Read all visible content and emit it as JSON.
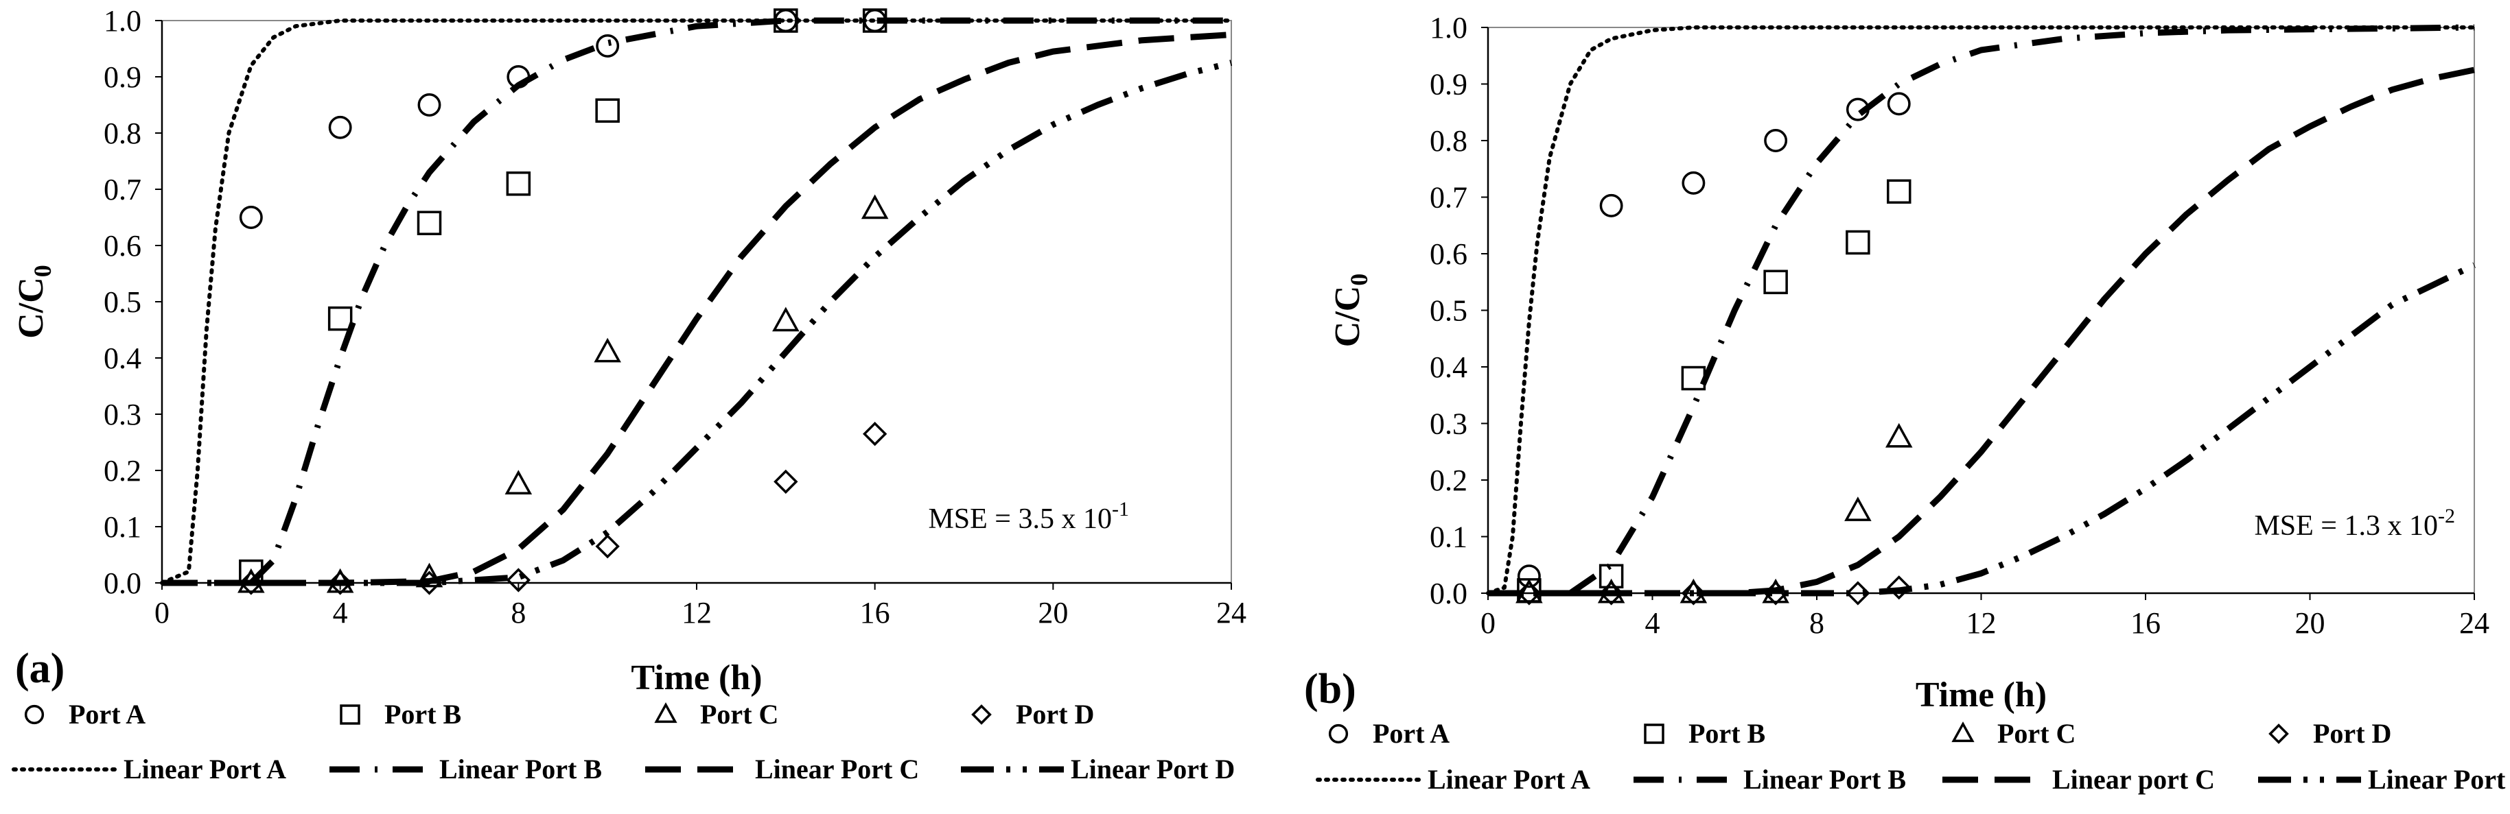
{
  "chart_data": [
    {
      "type": "scatter",
      "panel_label": "(a)",
      "xlabel": "Time (h)",
      "ylabel": "C/C",
      "ylabel_sub": "0",
      "xlim": [
        0,
        24
      ],
      "ylim": [
        0,
        1
      ],
      "xticks": [
        "0",
        "4",
        "8",
        "12",
        "16",
        "20",
        "24"
      ],
      "yticks": [
        "0.0",
        "0.1",
        "0.2",
        "0.3",
        "0.4",
        "0.5",
        "0.6",
        "0.7",
        "0.8",
        "0.9",
        "1.0"
      ],
      "annotation": {
        "text": "MSE = 3.5 x 10",
        "sup": "-1"
      },
      "series": [
        {
          "name": "Port A",
          "marker": "circle",
          "points": [
            [
              2,
              0.65
            ],
            [
              4,
              0.81
            ],
            [
              6,
              0.85
            ],
            [
              8,
              0.9
            ],
            [
              10,
              0.955
            ],
            [
              14,
              1.0
            ],
            [
              16,
              1.0
            ]
          ]
        },
        {
          "name": "Port B",
          "marker": "square",
          "points": [
            [
              2,
              0.02
            ],
            [
              4,
              0.47
            ],
            [
              6,
              0.64
            ],
            [
              8,
              0.71
            ],
            [
              10,
              0.84
            ],
            [
              14,
              1.0
            ],
            [
              16,
              1.0
            ]
          ]
        },
        {
          "name": "Port C",
          "marker": "triangle",
          "points": [
            [
              2,
              0.0
            ],
            [
              4,
              0.0
            ],
            [
              6,
              0.01
            ],
            [
              8,
              0.175
            ],
            [
              10,
              0.41
            ],
            [
              14,
              0.465
            ],
            [
              16,
              0.665
            ]
          ]
        },
        {
          "name": "Port D",
          "marker": "diamond",
          "points": [
            [
              2,
              0.0
            ],
            [
              4,
              0.0
            ],
            [
              6,
              0.0
            ],
            [
              8,
              0.005
            ],
            [
              10,
              0.065
            ],
            [
              14,
              0.18
            ],
            [
              16,
              0.265
            ]
          ]
        }
      ],
      "lines": [
        {
          "name": "Linear Port A",
          "dash": "dotted",
          "points": [
            [
              0,
              0
            ],
            [
              0.6,
              0.02
            ],
            [
              0.8,
              0.2
            ],
            [
              1.0,
              0.45
            ],
            [
              1.2,
              0.63
            ],
            [
              1.5,
              0.8
            ],
            [
              2.0,
              0.92
            ],
            [
              2.5,
              0.97
            ],
            [
              3.0,
              0.99
            ],
            [
              4.0,
              1.0
            ],
            [
              24,
              1.0
            ]
          ]
        },
        {
          "name": "Linear Port B",
          "dash": "dashdot",
          "points": [
            [
              2,
              0.0
            ],
            [
              2.5,
              0.04
            ],
            [
              3.0,
              0.15
            ],
            [
              3.5,
              0.28
            ],
            [
              4.0,
              0.4
            ],
            [
              4.5,
              0.51
            ],
            [
              5.0,
              0.6
            ],
            [
              5.5,
              0.67
            ],
            [
              6.0,
              0.73
            ],
            [
              7.0,
              0.82
            ],
            [
              8.0,
              0.885
            ],
            [
              9.0,
              0.93
            ],
            [
              10.0,
              0.96
            ],
            [
              12.0,
              0.99
            ],
            [
              14.0,
              1.0
            ],
            [
              24,
              1.0
            ]
          ]
        },
        {
          "name": "Linear Port C",
          "dash": "longdash",
          "points": [
            [
              0,
              0
            ],
            [
              4,
              0
            ],
            [
              6,
              0.003
            ],
            [
              7,
              0.02
            ],
            [
              8,
              0.06
            ],
            [
              9,
              0.13
            ],
            [
              10,
              0.23
            ],
            [
              11,
              0.35
            ],
            [
              12,
              0.47
            ],
            [
              13,
              0.58
            ],
            [
              14,
              0.67
            ],
            [
              15,
              0.745
            ],
            [
              16,
              0.81
            ],
            [
              17,
              0.86
            ],
            [
              18,
              0.895
            ],
            [
              19,
              0.925
            ],
            [
              20,
              0.945
            ],
            [
              22,
              0.965
            ],
            [
              24,
              0.975
            ]
          ]
        },
        {
          "name": "Linear Port D",
          "dash": "dashdotdot",
          "points": [
            [
              0,
              0
            ],
            [
              6,
              0
            ],
            [
              8,
              0.01
            ],
            [
              9,
              0.04
            ],
            [
              10,
              0.09
            ],
            [
              11,
              0.16
            ],
            [
              12,
              0.24
            ],
            [
              13,
              0.32
            ],
            [
              14,
              0.41
            ],
            [
              15,
              0.5
            ],
            [
              16,
              0.58
            ],
            [
              17,
              0.65
            ],
            [
              18,
              0.715
            ],
            [
              19,
              0.77
            ],
            [
              20,
              0.815
            ],
            [
              21,
              0.85
            ],
            [
              22,
              0.88
            ],
            [
              23,
              0.905
            ],
            [
              24,
              0.925
            ]
          ]
        }
      ]
    },
    {
      "type": "scatter",
      "panel_label": "(b)",
      "xlabel": "Time (h)",
      "ylabel": "C/C",
      "ylabel_sub": "0",
      "xlim": [
        0,
        24
      ],
      "ylim": [
        0,
        1
      ],
      "xticks": [
        "0",
        "4",
        "8",
        "12",
        "16",
        "20",
        "24"
      ],
      "yticks": [
        "0.0",
        "0.1",
        "0.2",
        "0.3",
        "0.4",
        "0.5",
        "0.6",
        "0.7",
        "0.8",
        "0.9",
        "1.0"
      ],
      "annotation": {
        "text": "MSE = 1.3 x 10",
        "sup": "-2"
      },
      "series": [
        {
          "name": "Port A",
          "marker": "circle",
          "points": [
            [
              1,
              0.03
            ],
            [
              3,
              0.685
            ],
            [
              5,
              0.725
            ],
            [
              7,
              0.8
            ],
            [
              9,
              0.855
            ],
            [
              10,
              0.865
            ]
          ]
        },
        {
          "name": "Port B",
          "marker": "square",
          "points": [
            [
              1,
              0.005
            ],
            [
              3,
              0.03
            ],
            [
              5,
              0.38
            ],
            [
              7,
              0.55
            ],
            [
              9,
              0.62
            ],
            [
              10,
              0.71
            ]
          ]
        },
        {
          "name": "Port C",
          "marker": "triangle",
          "points": [
            [
              1,
              0.0
            ],
            [
              3,
              0.0
            ],
            [
              5,
              0.0
            ],
            [
              7,
              0.0
            ],
            [
              9,
              0.145
            ],
            [
              10,
              0.275
            ]
          ]
        },
        {
          "name": "Port D",
          "marker": "diamond",
          "points": [
            [
              1,
              0.0
            ],
            [
              3,
              0.0
            ],
            [
              5,
              0.0
            ],
            [
              7,
              0.0
            ],
            [
              9,
              0.0
            ],
            [
              10,
              0.01
            ]
          ]
        }
      ],
      "lines": [
        {
          "name": "Linear Port A",
          "dash": "dotted",
          "points": [
            [
              0,
              0
            ],
            [
              0.4,
              0.01
            ],
            [
              0.6,
              0.1
            ],
            [
              0.8,
              0.3
            ],
            [
              1.0,
              0.48
            ],
            [
              1.2,
              0.62
            ],
            [
              1.5,
              0.77
            ],
            [
              2.0,
              0.9
            ],
            [
              2.5,
              0.96
            ],
            [
              3.0,
              0.98
            ],
            [
              4.0,
              0.995
            ],
            [
              5.0,
              1.0
            ],
            [
              24,
              1.0
            ]
          ]
        },
        {
          "name": "Linear Port B",
          "dash": "dashdot",
          "points": [
            [
              2,
              0.0
            ],
            [
              3,
              0.05
            ],
            [
              4,
              0.17
            ],
            [
              5,
              0.33
            ],
            [
              6,
              0.5
            ],
            [
              7,
              0.65
            ],
            [
              8,
              0.76
            ],
            [
              9,
              0.845
            ],
            [
              10,
              0.9
            ],
            [
              11,
              0.935
            ],
            [
              12,
              0.96
            ],
            [
              14,
              0.98
            ],
            [
              16,
              0.99
            ],
            [
              18,
              0.995
            ],
            [
              24,
              1.0
            ]
          ]
        },
        {
          "name": "Linear port C",
          "dash": "longdash",
          "points": [
            [
              0,
              0
            ],
            [
              6,
              0
            ],
            [
              7,
              0.005
            ],
            [
              8,
              0.02
            ],
            [
              9,
              0.05
            ],
            [
              10,
              0.1
            ],
            [
              11,
              0.17
            ],
            [
              12,
              0.25
            ],
            [
              13,
              0.34
            ],
            [
              14,
              0.43
            ],
            [
              15,
              0.52
            ],
            [
              16,
              0.6
            ],
            [
              17,
              0.67
            ],
            [
              18,
              0.73
            ],
            [
              19,
              0.785
            ],
            [
              20,
              0.825
            ],
            [
              21,
              0.86
            ],
            [
              22,
              0.89
            ],
            [
              23,
              0.91
            ],
            [
              24,
              0.925
            ]
          ]
        },
        {
          "name": "Linear Port D",
          "dash": "dashdotdot",
          "points": [
            [
              0,
              0
            ],
            [
              9,
              0
            ],
            [
              10,
              0.005
            ],
            [
              11,
              0.015
            ],
            [
              12,
              0.035
            ],
            [
              13,
              0.065
            ],
            [
              14,
              0.1
            ],
            [
              15,
              0.14
            ],
            [
              16,
              0.185
            ],
            [
              17,
              0.235
            ],
            [
              18,
              0.29
            ],
            [
              19,
              0.345
            ],
            [
              20,
              0.4
            ],
            [
              21,
              0.455
            ],
            [
              22,
              0.51
            ],
            [
              23,
              0.545
            ],
            [
              24,
              0.58
            ]
          ]
        }
      ]
    }
  ]
}
